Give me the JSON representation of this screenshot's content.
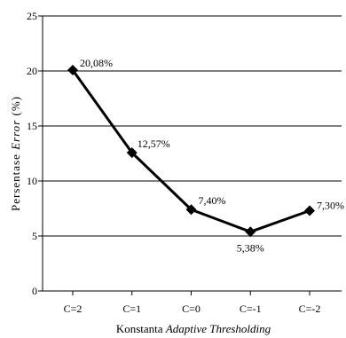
{
  "chart_data": {
    "type": "line",
    "categories": [
      "C=2",
      "C=1",
      "C=0",
      "C=-1",
      "C=-2"
    ],
    "series": [
      {
        "values": [
          20.08,
          12.57,
          7.4,
          5.38,
          7.3
        ]
      }
    ],
    "data_labels": [
      "20,08%",
      "12,57%",
      "7,40%",
      "5,38%",
      "7,30%"
    ],
    "title": "",
    "xlabel": {
      "plain": "Konstanta ",
      "italic": "Adaptive Thresholding"
    },
    "ylabel": {
      "plain": "Persentase ",
      "italic": "Error",
      "suffix": " (%)"
    },
    "ylim": [
      0,
      25
    ],
    "yticks": [
      "0",
      "5",
      "10",
      "15",
      "20",
      "25"
    ],
    "grid": true,
    "legend": "none",
    "line_color": "#000000",
    "marker": "diamond"
  }
}
